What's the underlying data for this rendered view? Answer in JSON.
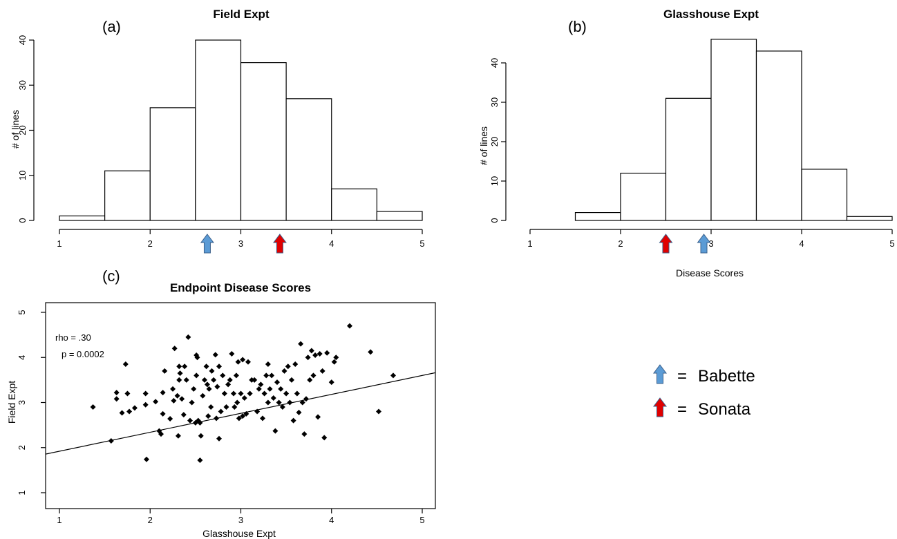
{
  "charts": {
    "a": {
      "panel_label": "(a)",
      "chart_data": {
        "type": "bar",
        "title": "Field Expt",
        "xlabel": "",
        "ylabel": "# of lines",
        "bin_edges": [
          1,
          1.5,
          2,
          2.5,
          3,
          3.5,
          4,
          4.5,
          5
        ],
        "values": [
          1,
          11,
          25,
          40,
          35,
          27,
          7,
          2
        ],
        "xlim": [
          1,
          5
        ],
        "ylim": [
          0,
          40
        ],
        "xticks": [
          "1",
          "2",
          "3",
          "4",
          "5"
        ],
        "yticks": [
          "0",
          "10",
          "20",
          "30",
          "40"
        ],
        "markers": [
          {
            "name": "Babette",
            "x": 2.63,
            "color": "#5b9bd5"
          },
          {
            "name": "Sonata",
            "x": 3.43,
            "color": "#e00000"
          }
        ],
        "grid": false
      }
    },
    "b": {
      "panel_label": "(b)",
      "chart_data": {
        "type": "bar",
        "title": "Glasshouse Expt",
        "xlabel": "Disease Scores",
        "ylabel": "# of lines",
        "bin_edges": [
          1,
          1.5,
          2,
          2.5,
          3,
          3.5,
          4,
          4.5,
          5
        ],
        "values": [
          0,
          2,
          12,
          31,
          46,
          43,
          13,
          1
        ],
        "xlim": [
          1,
          5
        ],
        "ylim": [
          0,
          40
        ],
        "xticks": [
          "1",
          "2",
          "3",
          "4",
          "5"
        ],
        "yticks": [
          "0",
          "10",
          "20",
          "30",
          "40"
        ],
        "markers": [
          {
            "name": "Sonata",
            "x": 2.5,
            "color": "#e00000"
          },
          {
            "name": "Babette",
            "x": 2.92,
            "color": "#5b9bd5"
          }
        ],
        "grid": false
      }
    },
    "c": {
      "panel_label": "(c)",
      "chart_data": {
        "type": "scatter",
        "title": "Endpoint Disease Scores",
        "xlabel": "Glasshouse Expt",
        "ylabel": "Field Expt",
        "xlim": [
          1,
          5
        ],
        "ylim": [
          1,
          5
        ],
        "xticks": [
          "1",
          "2",
          "3",
          "4",
          "5"
        ],
        "yticks": [
          "1",
          "2",
          "3",
          "4",
          "5"
        ],
        "annotations": [
          "rho = .30",
          "p = 0.0002"
        ],
        "fit_line": {
          "intercept": 1.5,
          "slope": 0.42
        },
        "points": [
          [
            1.37,
            2.9
          ],
          [
            1.57,
            2.15
          ],
          [
            1.63,
            3.22
          ],
          [
            1.63,
            3.08
          ],
          [
            1.69,
            2.77
          ],
          [
            1.73,
            3.85
          ],
          [
            1.75,
            3.2
          ],
          [
            1.77,
            2.8
          ],
          [
            1.83,
            2.88
          ],
          [
            1.95,
            3.2
          ],
          [
            1.95,
            2.95
          ],
          [
            1.96,
            1.74
          ],
          [
            2.06,
            3.02
          ],
          [
            2.1,
            2.37
          ],
          [
            2.12,
            2.3
          ],
          [
            2.14,
            2.75
          ],
          [
            2.14,
            3.22
          ],
          [
            2.16,
            3.7
          ],
          [
            2.22,
            2.64
          ],
          [
            2.25,
            3.3
          ],
          [
            2.26,
            3.04
          ],
          [
            2.27,
            4.2
          ],
          [
            2.3,
            3.15
          ],
          [
            2.31,
            2.26
          ],
          [
            2.32,
            3.8
          ],
          [
            2.32,
            3.5
          ],
          [
            2.33,
            3.65
          ],
          [
            2.35,
            3.08
          ],
          [
            2.37,
            2.73
          ],
          [
            2.38,
            3.8
          ],
          [
            2.4,
            3.5
          ],
          [
            2.42,
            4.45
          ],
          [
            2.44,
            2.6
          ],
          [
            2.46,
            3.0
          ],
          [
            2.48,
            3.3
          ],
          [
            2.5,
            2.55
          ],
          [
            2.51,
            4.05
          ],
          [
            2.51,
            3.6
          ],
          [
            2.52,
            4.0
          ],
          [
            2.53,
            2.6
          ],
          [
            2.55,
            2.55
          ],
          [
            2.55,
            1.72
          ],
          [
            2.56,
            2.26
          ],
          [
            2.58,
            3.15
          ],
          [
            2.6,
            3.5
          ],
          [
            2.62,
            3.8
          ],
          [
            2.63,
            3.4
          ],
          [
            2.64,
            2.7
          ],
          [
            2.65,
            3.3
          ],
          [
            2.67,
            2.9
          ],
          [
            2.68,
            3.7
          ],
          [
            2.7,
            3.5
          ],
          [
            2.72,
            4.06
          ],
          [
            2.73,
            2.65
          ],
          [
            2.74,
            3.35
          ],
          [
            2.76,
            3.8
          ],
          [
            2.76,
            2.2
          ],
          [
            2.78,
            2.8
          ],
          [
            2.8,
            3.6
          ],
          [
            2.82,
            3.2
          ],
          [
            2.84,
            2.9
          ],
          [
            2.86,
            3.4
          ],
          [
            2.88,
            3.5
          ],
          [
            2.9,
            4.08
          ],
          [
            2.92,
            3.2
          ],
          [
            2.93,
            2.9
          ],
          [
            2.95,
            3.6
          ],
          [
            2.96,
            3.0
          ],
          [
            2.97,
            3.9
          ],
          [
            2.98,
            2.65
          ],
          [
            3.0,
            3.2
          ],
          [
            3.02,
            3.95
          ],
          [
            3.02,
            2.7
          ],
          [
            3.04,
            3.1
          ],
          [
            3.06,
            2.75
          ],
          [
            3.08,
            3.9
          ],
          [
            3.1,
            3.2
          ],
          [
            3.12,
            3.5
          ],
          [
            3.15,
            3.5
          ],
          [
            3.18,
            2.8
          ],
          [
            3.2,
            3.3
          ],
          [
            3.22,
            3.4
          ],
          [
            3.24,
            2.65
          ],
          [
            3.26,
            3.2
          ],
          [
            3.28,
            3.6
          ],
          [
            3.3,
            3.0
          ],
          [
            3.3,
            3.85
          ],
          [
            3.32,
            3.3
          ],
          [
            3.34,
            3.6
          ],
          [
            3.36,
            3.1
          ],
          [
            3.38,
            2.37
          ],
          [
            3.4,
            3.45
          ],
          [
            3.42,
            3.0
          ],
          [
            3.44,
            3.3
          ],
          [
            3.46,
            2.9
          ],
          [
            3.48,
            3.7
          ],
          [
            3.5,
            3.2
          ],
          [
            3.52,
            3.8
          ],
          [
            3.54,
            3.0
          ],
          [
            3.56,
            3.5
          ],
          [
            3.58,
            2.6
          ],
          [
            3.6,
            3.85
          ],
          [
            3.62,
            3.2
          ],
          [
            3.64,
            2.78
          ],
          [
            3.66,
            4.3
          ],
          [
            3.68,
            3.0
          ],
          [
            3.7,
            2.3
          ],
          [
            3.72,
            3.08
          ],
          [
            3.74,
            4.0
          ],
          [
            3.76,
            3.5
          ],
          [
            3.78,
            4.15
          ],
          [
            3.8,
            3.6
          ],
          [
            3.82,
            4.05
          ],
          [
            3.85,
            2.68
          ],
          [
            3.87,
            4.08
          ],
          [
            3.9,
            3.7
          ],
          [
            3.92,
            2.22
          ],
          [
            3.95,
            4.1
          ],
          [
            4.0,
            3.45
          ],
          [
            4.03,
            3.9
          ],
          [
            4.05,
            4.0
          ],
          [
            4.2,
            4.7
          ],
          [
            4.43,
            4.12
          ],
          [
            4.52,
            2.8
          ],
          [
            4.68,
            3.6
          ]
        ]
      }
    }
  },
  "legend": {
    "items": [
      {
        "symbol": "=",
        "label": "Babette",
        "color": "#5b9bd5"
      },
      {
        "symbol": "=",
        "label": "Sonata",
        "color": "#e00000"
      }
    ]
  }
}
